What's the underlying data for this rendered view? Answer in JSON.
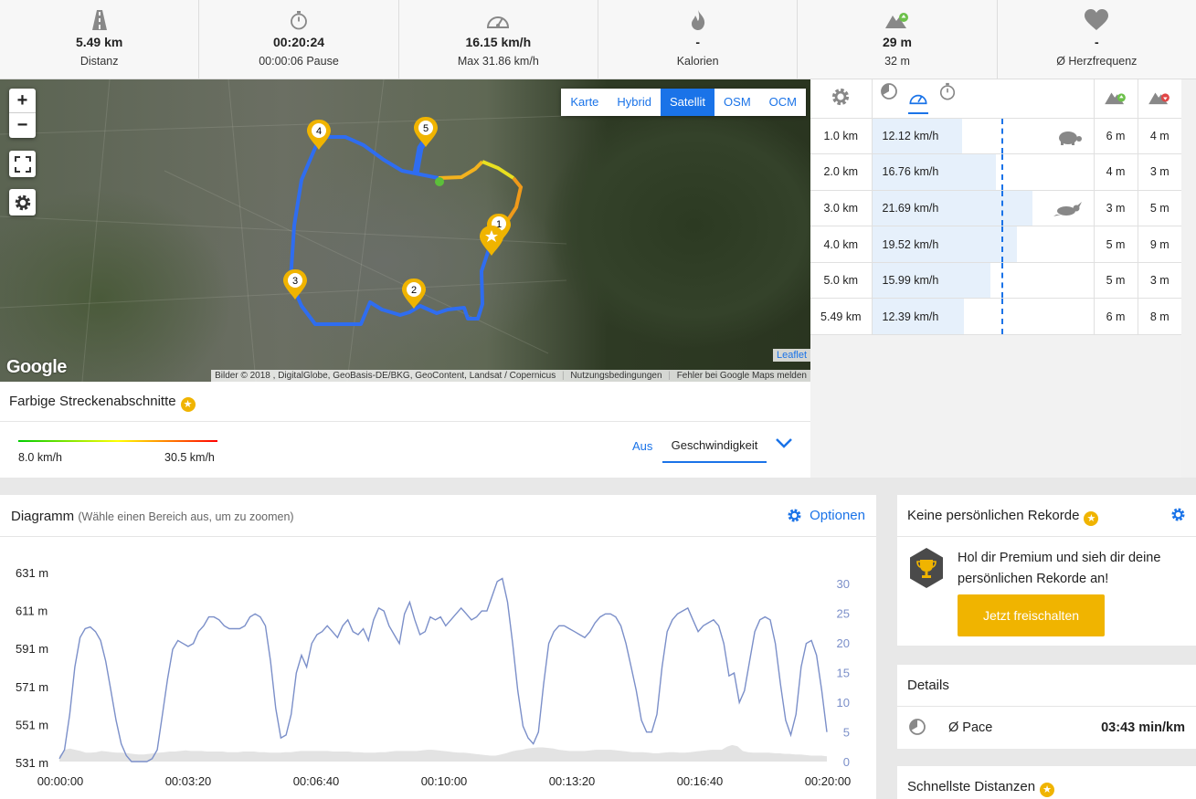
{
  "stats": [
    {
      "icon": "road-icon",
      "value": "5.49 km",
      "label": "Distanz"
    },
    {
      "icon": "stopwatch-icon",
      "value": "00:20:24",
      "label": "00:00:06 Pause"
    },
    {
      "icon": "speedometer-icon",
      "value": "16.15 km/h",
      "label": "Max 31.86 km/h"
    },
    {
      "icon": "flame-icon",
      "value": "-",
      "label": "Kalorien"
    },
    {
      "icon": "mountain-up-icon",
      "value": "29 m",
      "label": "32 m"
    },
    {
      "icon": "heart-icon",
      "value": "-",
      "label": "Ø Herzfrequenz"
    }
  ],
  "map": {
    "zoom_in": "+",
    "zoom_out": "−",
    "types": [
      "Karte",
      "Hybrid",
      "Satellit",
      "OSM",
      "OCM"
    ],
    "active_type": "Satellit",
    "google_logo": "Google",
    "attribution": "Bilder © 2018 , DigitalGlobe, GeoBasis-DE/BKG, GeoContent, Landsat / Copernicus",
    "terms": "Nutzungsbedingungen",
    "report": "Fehler bei Google Maps melden",
    "leaflet": "Leaflet",
    "markers": [
      "1",
      "2",
      "3",
      "4",
      "5"
    ]
  },
  "color_segments": {
    "title": "Farbige Streckenabschnitte",
    "min": "8.0 km/h",
    "max": "30.5 km/h",
    "option_off": "Aus",
    "option_speed": "Geschwindigkeit"
  },
  "splits": {
    "rows": [
      {
        "km": "1.0 km",
        "speed": "12.12 km/h",
        "speed_value": 12.12,
        "badge": "turtle-icon",
        "up": "6 m",
        "down": "4 m"
      },
      {
        "km": "2.0 km",
        "speed": "16.76 km/h",
        "speed_value": 16.76,
        "badge": "",
        "up": "4 m",
        "down": "3 m"
      },
      {
        "km": "3.0 km",
        "speed": "21.69 km/h",
        "speed_value": 21.69,
        "badge": "rabbit-icon",
        "up": "3 m",
        "down": "5 m"
      },
      {
        "km": "4.0 km",
        "speed": "19.52 km/h",
        "speed_value": 19.52,
        "badge": "",
        "up": "5 m",
        "down": "9 m"
      },
      {
        "km": "5.0 km",
        "speed": "15.99 km/h",
        "speed_value": 15.99,
        "badge": "",
        "up": "5 m",
        "down": "3 m"
      },
      {
        "km": "5.49 km",
        "speed": "12.39 km/h",
        "speed_value": 12.39,
        "badge": "",
        "up": "6 m",
        "down": "8 m"
      }
    ]
  },
  "diagram": {
    "title": "Diagramm",
    "hint": "(Wähle einen Bereich aus, um zu zoomen)",
    "options": "Optionen"
  },
  "chart_data": {
    "type": "line",
    "x_ticks": [
      "00:00:00",
      "00:03:20",
      "00:06:40",
      "00:10:00",
      "00:13:20",
      "00:16:40",
      "00:20:00"
    ],
    "y_left_ticks": [
      "631 m",
      "611 m",
      "591 m",
      "571 m",
      "551 m",
      "531 m"
    ],
    "y_right_ticks": [
      "30",
      "25",
      "20",
      "15",
      "10",
      "5",
      "0"
    ],
    "y_right_range": [
      0,
      30
    ],
    "series": [
      {
        "values": [
          0.5,
          2,
          8,
          16,
          21,
          22.5,
          22.8,
          22,
          20.5,
          17,
          12,
          7,
          3,
          1,
          0,
          0,
          0,
          0,
          0.5,
          2,
          8,
          14,
          19,
          20.5,
          20,
          19.5,
          20,
          22,
          23,
          24.5,
          24.5,
          24,
          23,
          22.5,
          22.5,
          22.5,
          23,
          24.5,
          25,
          24.5,
          23,
          17,
          9,
          4,
          4.5,
          8,
          15,
          18,
          16,
          20,
          21.5,
          22,
          23,
          22,
          21,
          23,
          24,
          22,
          21.5,
          22.5,
          20.5,
          24,
          26,
          25.5,
          23,
          21.5,
          20,
          25,
          27,
          24,
          21.5,
          22,
          24.5,
          24,
          24.5,
          23,
          24,
          25,
          26,
          25,
          24,
          24.5,
          25.5,
          25.5,
          28,
          30.5,
          31,
          27,
          20,
          12,
          6,
          4,
          3,
          5,
          13,
          20,
          22,
          23,
          23,
          22.5,
          22,
          21.5,
          21,
          22,
          23.5,
          24.5,
          25,
          25,
          24.5,
          23,
          20,
          16,
          12,
          7,
          5,
          5,
          8,
          16,
          22,
          24,
          25,
          25.5,
          26,
          24,
          22,
          23,
          23.5,
          24,
          23,
          20,
          14.5,
          15,
          10,
          12,
          17,
          22,
          24,
          24.5,
          24,
          20,
          13,
          7,
          4.5,
          8,
          16,
          20,
          20.5,
          18,
          12,
          5
        ]
      },
      {
        "values": [
          1,
          2,
          2.2,
          2,
          1.8,
          1.5,
          1.5,
          1.6,
          1.8,
          1.7,
          1.6,
          1.5,
          1.5,
          1.4,
          1.3,
          1.2,
          1.2,
          1.3,
          1.4,
          1.5,
          1.6,
          1.7,
          1.7,
          1.8,
          1.9,
          1.8,
          1.8,
          1.8,
          1.7,
          1.7,
          1.7,
          1.7,
          1.6,
          1.6,
          1.6,
          1.7,
          1.7,
          1.7,
          1.6,
          1.6,
          1.5,
          1.5,
          1.5,
          1.6,
          1.6,
          1.7,
          1.8,
          1.8,
          1.8,
          1.8,
          1.8,
          1.8,
          1.7,
          1.7,
          1.7,
          1.7,
          1.6,
          1.6,
          1.5,
          1.5,
          1.5,
          1.6,
          1.6,
          1.7,
          1.8,
          1.8,
          1.8,
          1.8,
          1.8,
          1.9,
          2,
          2,
          1.9,
          1.8,
          1.7,
          1.6,
          1.5,
          1.5,
          1.4,
          1.3,
          1.2,
          1.1,
          1,
          1,
          1.2,
          1.4,
          1.7,
          1.9,
          2,
          2.2,
          2.3,
          2.4,
          2.4,
          2.3,
          2.2,
          2,
          1.9,
          1.8,
          1.8,
          1.8,
          1.8,
          1.9,
          2,
          2,
          2,
          2,
          1.9,
          1.8,
          1.7,
          1.6,
          1.6,
          1.6,
          1.5,
          1.4,
          1.4,
          1.5,
          1.6,
          1.6,
          1.5,
          1.5,
          1.6,
          1.7,
          1.8,
          1.9,
          2,
          2,
          2,
          2.5,
          2.8,
          2.6,
          1.8,
          1.6,
          1.5,
          1.5,
          1.5,
          1.5,
          1.4,
          1.4,
          1.3,
          1.3,
          1.2,
          1.2,
          1.1,
          1,
          1,
          1,
          0.9
        ]
      }
    ]
  },
  "records": {
    "title": "Keine persönlichen Rekorde",
    "text": "Hol dir Premium und sieh dir deine persönlichen Rekorde an!",
    "cta": "Jetzt freischalten"
  },
  "details": {
    "title": "Details",
    "pace_label": "Ø Pace",
    "pace_value": "03:43 min/km"
  },
  "fastest": {
    "title": "Schnellste Distanzen"
  }
}
